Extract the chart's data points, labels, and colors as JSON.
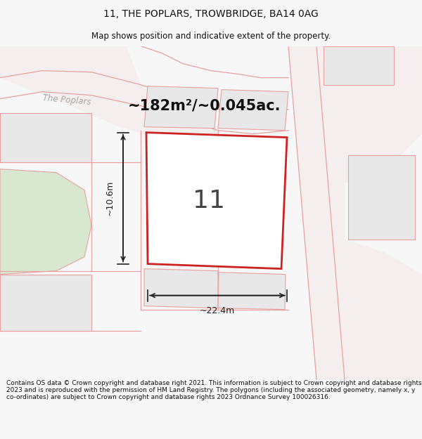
{
  "title": "11, THE POPLARS, TROWBRIDGE, BA14 0AG",
  "subtitle": "Map shows position and indicative extent of the property.",
  "footer": "Contains OS data © Crown copyright and database right 2021. This information is subject to Crown copyright and database rights 2023 and is reproduced with the permission of HM Land Registry. The polygons (including the associated geometry, namely x, y co-ordinates) are subject to Crown copyright and database rights 2023 Ordnance Survey 100026316.",
  "area_label": "~182m²/~0.045ac.",
  "plot_number": "11",
  "dim_width": "~22.4m",
  "dim_height": "~10.6m",
  "bg_color": "#f7f7f7",
  "map_bg": "#ffffff",
  "plot_edge_color": "#cc2222",
  "parcel_edge": "#e8a0a0",
  "parcel_face": "#e8e8e8",
  "green_face": "#d8e8d0",
  "road_face": "#f5f0f0",
  "street_label_color": "#aaaaaa",
  "dim_color": "#222222",
  "area_color": "#111111",
  "title_color": "#111111",
  "footer_color": "#111111"
}
